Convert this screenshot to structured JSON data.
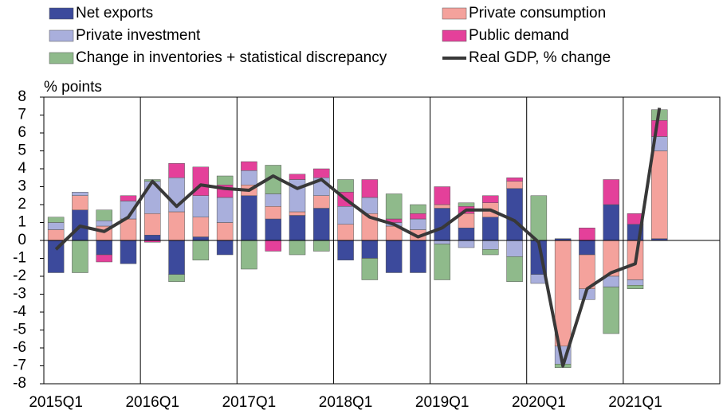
{
  "chart_data": {
    "type": "bar",
    "stacked": true,
    "y_axis_label": "% points",
    "categories": [
      "2015Q1",
      null,
      null,
      null,
      "2016Q1",
      null,
      null,
      null,
      "2017Q1",
      null,
      null,
      null,
      "2018Q1",
      null,
      null,
      null,
      "2019Q1",
      null,
      null,
      null,
      "2020Q1",
      null,
      null,
      null,
      "2021Q1",
      null,
      null,
      null
    ],
    "series": [
      {
        "name": "Net exports",
        "color": "#3c4a9c",
        "values": [
          -1.8,
          1.7,
          -0.8,
          -1.3,
          0.3,
          -1.9,
          0.2,
          -0.8,
          2.5,
          1.2,
          1.4,
          1.8,
          -1.1,
          -1.0,
          -1.8,
          -1.8,
          1.8,
          0.7,
          1.3,
          2.9,
          -1.9,
          0.1,
          -0.8,
          2.0,
          0.9,
          0.1,
          null,
          null
        ]
      },
      {
        "name": "Private consumption",
        "color": "#f4a29c",
        "values": [
          0.6,
          0.8,
          0.8,
          1.2,
          1.2,
          1.6,
          1.1,
          1.0,
          0.6,
          0.7,
          0.2,
          0.7,
          0.9,
          1.5,
          0.8,
          0.6,
          0.2,
          0.8,
          0.8,
          0.4,
          0,
          -5.9,
          -1.9,
          -2.0,
          -2.2,
          4.9,
          null,
          null
        ]
      },
      {
        "name": "Private investment",
        "color": "#a9afdc",
        "values": [
          0.4,
          0.2,
          0.3,
          1.0,
          1.8,
          1.9,
          1.2,
          1.4,
          0.8,
          0.7,
          1.8,
          1.0,
          1.0,
          0.9,
          0.2,
          0.6,
          -0.2,
          -0.4,
          -0.5,
          -0.9,
          -0.5,
          -1.0,
          -0.6,
          -0.6,
          -0.3,
          0.8,
          null,
          null
        ]
      },
      {
        "name": "Public demand",
        "color": "#e4409a",
        "values": [
          0,
          0,
          -0.4,
          0.3,
          -0.1,
          0.8,
          1.6,
          0.7,
          0.5,
          -0.6,
          0.3,
          0.5,
          0.8,
          1.0,
          0.2,
          0.3,
          1.0,
          0.4,
          0.4,
          0.2,
          0,
          0,
          0.7,
          1.4,
          0.6,
          0.9,
          null,
          null
        ]
      },
      {
        "name": "Change in inventories + statistical discrepancy",
        "color": "#8fba8b",
        "values": [
          0.3,
          -1.8,
          0.6,
          0,
          0.1,
          -0.4,
          -1.1,
          0.5,
          -1.6,
          1.6,
          -0.8,
          -0.6,
          0.7,
          -1.2,
          1.4,
          0.5,
          -2.0,
          0.2,
          -0.3,
          -1.4,
          2.5,
          -0.2,
          0,
          -2.6,
          -0.2,
          0.6,
          null,
          null
        ]
      }
    ],
    "line": {
      "name": "Real GDP, % change",
      "color": "#383838",
      "values": [
        -0.5,
        0.8,
        0.5,
        1.3,
        3.3,
        1.9,
        3.1,
        2.9,
        2.8,
        3.6,
        2.9,
        3.4,
        2.3,
        1.3,
        0.9,
        0.2,
        0.7,
        1.7,
        1.7,
        1.1,
        -0.1,
        -7.0,
        -2.7,
        -1.8,
        -1.3,
        7.4,
        null,
        null
      ]
    },
    "ylim": [
      -8,
      8
    ],
    "yticks": [
      -8,
      -7,
      -6,
      -5,
      -4,
      -3,
      -2,
      -1,
      0,
      1,
      2,
      3,
      4,
      5,
      6,
      7,
      8
    ]
  }
}
